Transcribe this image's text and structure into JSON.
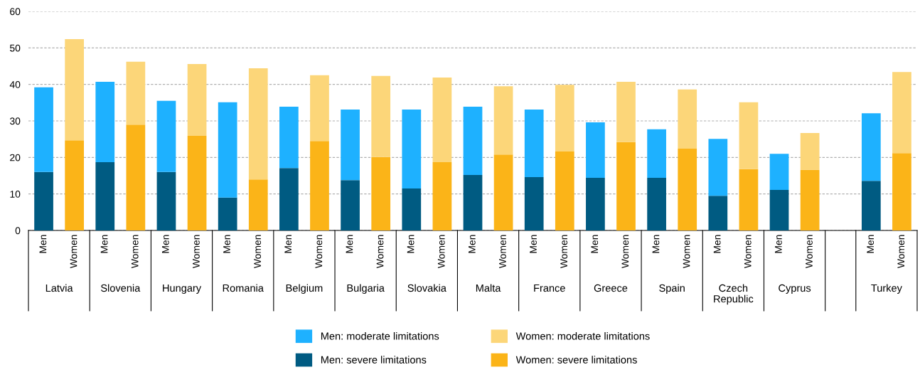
{
  "chart_data": {
    "type": "bar",
    "stacked": true,
    "categories": [
      "Men",
      "Women",
      "Men",
      "Women",
      "Men",
      "Women",
      "Men",
      "Women",
      "Men",
      "Women",
      "Men",
      "Women",
      "Men",
      "Women",
      "Men",
      "Women",
      "Men",
      "Women",
      "Men",
      "Women",
      "Men",
      "Women",
      "Men",
      "Women",
      "Men",
      "Women",
      null,
      "Men",
      "Women"
    ],
    "annotations": [
      "Latvia",
      "Slovenia",
      "Hungary",
      "Romania",
      "Belgium",
      "Bulgaria",
      "Slovakia",
      "Malta",
      "France",
      "Greece",
      "Spain",
      "Czech\nRepublic",
      "Cyprus",
      "Turkey"
    ],
    "series": [
      {
        "name": "Men: severe limitations",
        "color": "#005b82",
        "values": [
          16.0,
          null,
          18.7,
          null,
          16.0,
          null,
          9.0,
          null,
          17.1,
          null,
          13.8,
          null,
          11.5,
          null,
          15.2,
          null,
          14.6,
          null,
          14.4,
          null,
          14.4,
          null,
          9.5,
          null,
          11.1,
          null,
          null,
          13.6,
          null
        ]
      },
      {
        "name": "Men: moderate limitations",
        "color": "#1eb1ff",
        "values": [
          23.2,
          null,
          22.0,
          null,
          19.5,
          null,
          26.1,
          null,
          16.8,
          null,
          19.3,
          null,
          21.6,
          null,
          18.7,
          null,
          18.5,
          null,
          15.2,
          null,
          13.3,
          null,
          15.6,
          null,
          9.9,
          null,
          null,
          18.5,
          null
        ]
      },
      {
        "name": "Women: severe limitations",
        "color": "#fbb418",
        "values": [
          null,
          24.7,
          null,
          29.0,
          null,
          25.9,
          null,
          14.0,
          null,
          24.5,
          null,
          20.1,
          null,
          18.7,
          null,
          20.8,
          null,
          21.6,
          null,
          24.2,
          null,
          22.4,
          null,
          16.8,
          null,
          16.6,
          null,
          null,
          21.2
        ]
      },
      {
        "name": "Women: moderate limitations",
        "color": "#fcd679",
        "values": [
          null,
          27.7,
          null,
          17.2,
          null,
          19.7,
          null,
          30.4,
          null,
          18.0,
          null,
          22.2,
          null,
          23.2,
          null,
          18.7,
          null,
          18.3,
          null,
          16.5,
          null,
          16.2,
          null,
          18.3,
          null,
          10.1,
          null,
          null,
          22.2
        ]
      }
    ],
    "ylim": [
      0,
      60
    ],
    "yticks": [
      0,
      10,
      20,
      30,
      40,
      50,
      60
    ],
    "grid": "y",
    "legend": "bottom"
  }
}
